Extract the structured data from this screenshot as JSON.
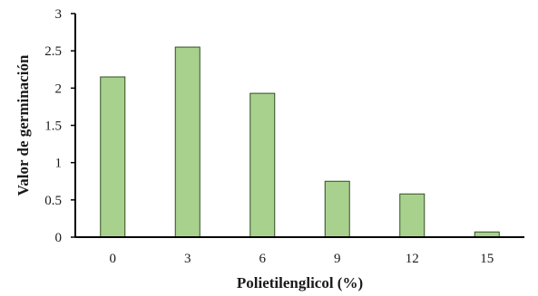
{
  "chart_data": {
    "type": "bar",
    "categories": [
      "0",
      "3",
      "6",
      "9",
      "12",
      "15"
    ],
    "values": [
      2.15,
      2.55,
      1.93,
      0.75,
      0.58,
      0.07
    ],
    "title": "",
    "xlabel": "Polietilenglicol (%)",
    "ylabel": "Valor de germinación",
    "ylim": [
      0,
      3
    ],
    "yticks": [
      "0",
      "0.5",
      "1",
      "1.5",
      "2",
      "2.5",
      "3"
    ],
    "bar_color": "#a9d18e",
    "grid": false,
    "legend": "none"
  }
}
